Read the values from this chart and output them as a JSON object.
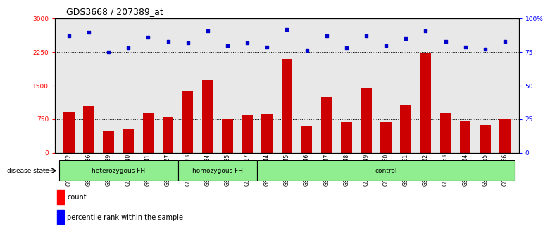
{
  "title": "GDS3668 / 207389_at",
  "samples": [
    "GSM140232",
    "GSM140236",
    "GSM140239",
    "GSM140240",
    "GSM140241",
    "GSM140257",
    "GSM140233",
    "GSM140234",
    "GSM140235",
    "GSM140237",
    "GSM140244",
    "GSM140245",
    "GSM140246",
    "GSM140247",
    "GSM140248",
    "GSM140249",
    "GSM140250",
    "GSM140251",
    "GSM140252",
    "GSM140253",
    "GSM140254",
    "GSM140255",
    "GSM140256"
  ],
  "counts": [
    900,
    1050,
    480,
    530,
    880,
    800,
    1380,
    1620,
    760,
    840,
    870,
    2100,
    610,
    1250,
    690,
    1460,
    690,
    1070,
    2220,
    880,
    710,
    620,
    770
  ],
  "percentiles": [
    87,
    90,
    75,
    78,
    86,
    83,
    82,
    91,
    80,
    82,
    79,
    92,
    76,
    87,
    78,
    87,
    80,
    85,
    91,
    83,
    79,
    77,
    83
  ],
  "bar_color": "#cc0000",
  "dot_color": "#0000cc",
  "ylim_left": [
    0,
    3000
  ],
  "ylim_right": [
    0,
    100
  ],
  "yticks_left": [
    0,
    750,
    1500,
    2250,
    3000
  ],
  "yticks_right": [
    0,
    25,
    50,
    75,
    100
  ],
  "grid_values": [
    750,
    1500,
    2250
  ],
  "bg_color": "#e8e8e8",
  "light_green": "#90EE90",
  "title_fontsize": 9,
  "tick_label_fontsize": 5.5,
  "group_boundaries": [
    6,
    10
  ],
  "group_specs": [
    [
      0,
      6,
      "heterozygous FH"
    ],
    [
      6,
      10,
      "homozygous FH"
    ],
    [
      10,
      23,
      "control"
    ]
  ]
}
